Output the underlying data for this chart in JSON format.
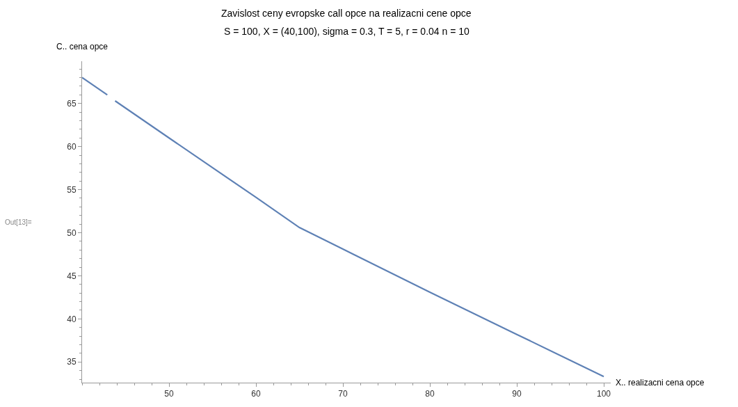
{
  "chart_data": {
    "type": "line",
    "title": "Zavislost ceny evropske call opce na realizacni cene opce",
    "subtitle": "S = 100, X = (40,100), sigma = 0.3, T = 5, r = 0.04 n = 10",
    "xlabel": "X.. realizacni cena opce",
    "ylabel": "C.. cena opce",
    "annotations": [
      "Out[13]="
    ],
    "x": [
      40,
      42.9,
      43.3,
      43.8,
      50,
      60,
      65,
      70,
      80,
      90,
      100
    ],
    "series": [
      {
        "color": "#5e81b5",
        "values": [
          68.0,
          66.0,
          null,
          65.3,
          61.0,
          54.1,
          50.6,
          48.1,
          43.1,
          38.2,
          33.3
        ]
      }
    ],
    "xlim": [
      40,
      100.8
    ],
    "ylim": [
      32.6,
      69.9
    ],
    "xticks": [
      50,
      60,
      70,
      80,
      90,
      100
    ],
    "yticks": [
      35,
      40,
      45,
      50,
      55,
      60,
      65
    ],
    "marker": "none",
    "line_style": "solid"
  }
}
